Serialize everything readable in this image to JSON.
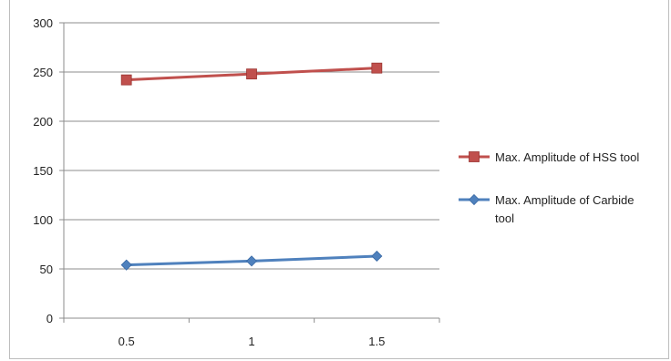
{
  "chart_data": {
    "type": "line",
    "title": "",
    "xlabel": "",
    "ylabel": "",
    "categories": [
      "0.5",
      "1",
      "1.5"
    ],
    "ylim": [
      0,
      300
    ],
    "yticks": [
      "0",
      "50",
      "100",
      "150",
      "200",
      "250",
      "300"
    ],
    "grid": "horizontal major gridlines",
    "legend_position": "right",
    "series": [
      {
        "name": "Max. Amplitude of HSS tool",
        "values": [
          242,
          248,
          254
        ],
        "color": "#c0504d",
        "marker": "square"
      },
      {
        "name": "Max. Amplitude of Carbide tool",
        "legend_lines": [
          "Max. Amplitude of Carbide",
          "tool"
        ],
        "values": [
          54,
          58,
          63
        ],
        "color": "#4f81bd",
        "marker": "diamond"
      }
    ]
  }
}
